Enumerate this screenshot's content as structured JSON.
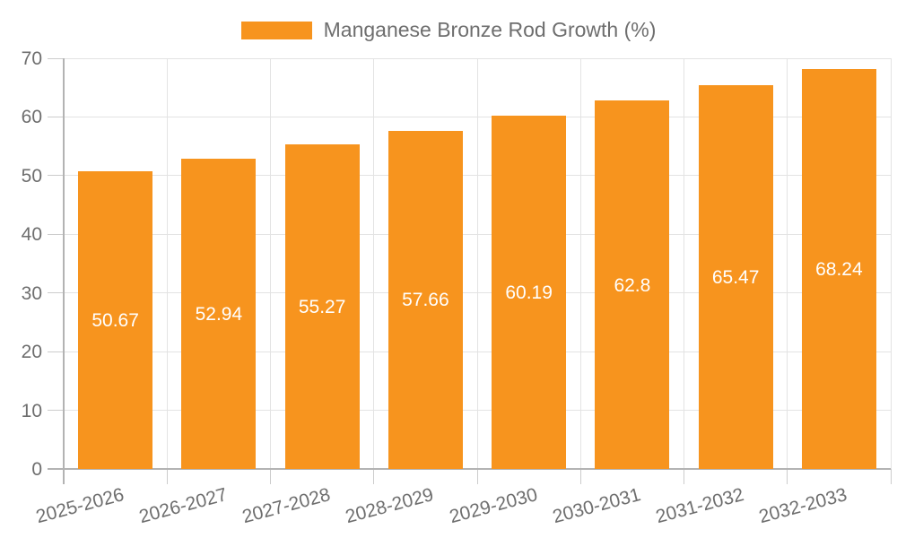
{
  "legend": {
    "label": "Manganese Bronze Rod Growth (%)"
  },
  "chart_data": {
    "type": "bar",
    "title": "Manganese Bronze Rod Growth (%)",
    "categories": [
      "2025-2026",
      "2026-2027",
      "2027-2028",
      "2028-2029",
      "2029-2030",
      "2030-2031",
      "2031-2032",
      "2032-2033"
    ],
    "values": [
      50.67,
      52.94,
      55.27,
      57.66,
      60.19,
      62.8,
      65.47,
      68.24
    ],
    "value_labels": [
      "50.67",
      "52.94",
      "55.27",
      "57.66",
      "60.19",
      "62.8",
      "65.47",
      "68.24"
    ],
    "xlabel": "",
    "ylabel": "",
    "ylim": [
      0,
      70
    ],
    "yticks": [
      0,
      10,
      20,
      30,
      40,
      50,
      60,
      70
    ],
    "grid": true,
    "legend_position": "top",
    "value_labels_inside_bars": true,
    "x_label_rotation_deg": -15,
    "colors": {
      "bar": "#f7941e",
      "value_label": "#ffffff",
      "grid": "#e3e3e3",
      "axis": "#b3b3b3",
      "tick": "#cccccc",
      "text": "#6e6e6e",
      "background": "#ffffff"
    }
  }
}
